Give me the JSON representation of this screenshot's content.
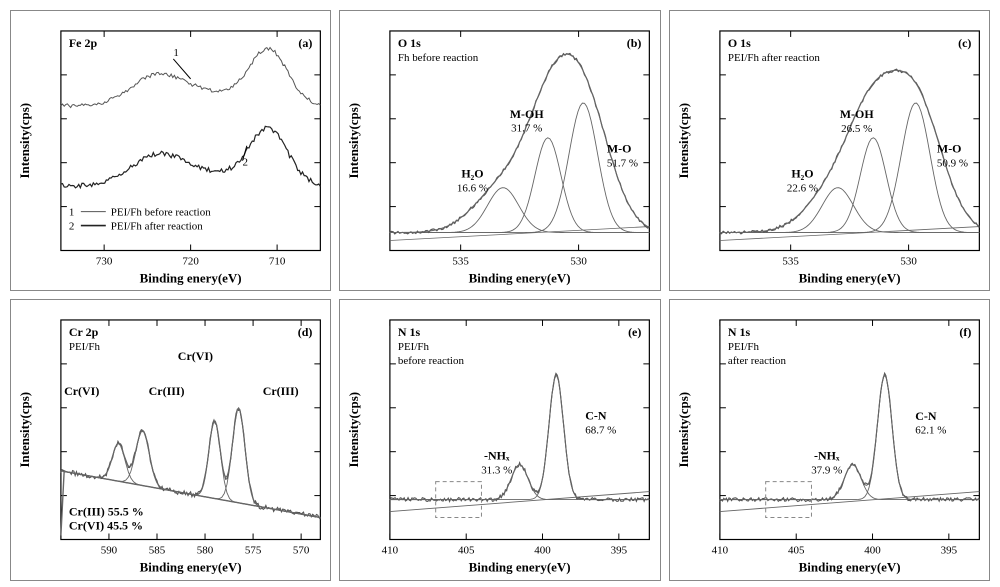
{
  "layout": {
    "cols": 3,
    "rows": 2,
    "panel_labels": [
      "(a)",
      "(b)",
      "(c)",
      "(d)",
      "(e)",
      "(f)"
    ]
  },
  "colors": {
    "spectrum": "#555555",
    "fit": "#666666",
    "axis": "#000000",
    "bg": "#ffffff",
    "dashed": "#888888"
  },
  "typography": {
    "axis_label_pt": 13,
    "tick_pt": 11,
    "annot_pt": 11
  },
  "axes": {
    "xlabel": "Binding enery(eV)",
    "ylabel": "Intensity(cps)"
  },
  "panels": {
    "a": {
      "region": "Fe 2p",
      "xlim": [
        735,
        705
      ],
      "xticks": [
        730,
        720,
        710
      ],
      "legend": [
        {
          "n": "1",
          "text": "PEI/Fh before reaction"
        },
        {
          "n": "2",
          "text": "PEI/Fh after reaction"
        }
      ],
      "curve1_annot": "1",
      "curve2_annot": "2"
    },
    "b": {
      "region": "O 1s",
      "subtitle": "Fh before reaction",
      "xlim": [
        538,
        527
      ],
      "xticks": [
        535,
        530
      ],
      "peaks": [
        {
          "label": "H₂O",
          "pct": "16.6 %",
          "x": 533.2
        },
        {
          "label": "M-OH",
          "pct": "31.7 %",
          "x": 531.3
        },
        {
          "label": "M-O",
          "pct": "51.7 %",
          "x": 529.8
        }
      ]
    },
    "c": {
      "region": "O 1s",
      "subtitle": "PEI/Fh after reaction",
      "xlim": [
        538,
        527
      ],
      "xticks": [
        535,
        530
      ],
      "peaks": [
        {
          "label": "H₂O",
          "pct": "22.6 %",
          "x": 533.0
        },
        {
          "label": "M-OH",
          "pct": "26.5 %",
          "x": 531.5
        },
        {
          "label": "M-O",
          "pct": "50.9 %",
          "x": 529.7
        }
      ]
    },
    "d": {
      "region": "Cr 2p",
      "subtitle": "PEI/Fh",
      "xlim": [
        595,
        568
      ],
      "xticks": [
        590,
        585,
        580,
        575,
        570
      ],
      "peaks": [
        {
          "label": "Cr(VI)",
          "x": 589
        },
        {
          "label": "Cr(III)",
          "x": 586.5
        },
        {
          "label": "Cr(VI)",
          "x": 579
        },
        {
          "label": "Cr(III)",
          "x": 576.5
        }
      ],
      "summary": [
        "Cr(III) 55.5 %",
        "Cr(VI) 45.5 %"
      ]
    },
    "e": {
      "region": "N 1s",
      "subtitle": "PEI/Fh",
      "subtitle2": "before reaction",
      "xlim": [
        410,
        393
      ],
      "xticks": [
        410,
        405,
        400,
        395
      ],
      "peaks": [
        {
          "label": "-NHₓ",
          "pct": "31.3 %",
          "x": 401.5
        },
        {
          "label": "C-N",
          "pct": "68.7 %",
          "x": 399.1
        }
      ],
      "dashed_box": {
        "x": 407,
        "w": 3
      }
    },
    "f": {
      "region": "N 1s",
      "subtitle": "PEI/Fh",
      "subtitle2": "after reaction",
      "xlim": [
        410,
        393
      ],
      "xticks": [
        410,
        405,
        400,
        395
      ],
      "peaks": [
        {
          "label": "-NHₓ",
          "pct": "37.9 %",
          "x": 401.3
        },
        {
          "label": "C-N",
          "pct": "62.1 %",
          "x": 399.2
        }
      ],
      "dashed_box": {
        "x": 407,
        "w": 3
      }
    }
  }
}
